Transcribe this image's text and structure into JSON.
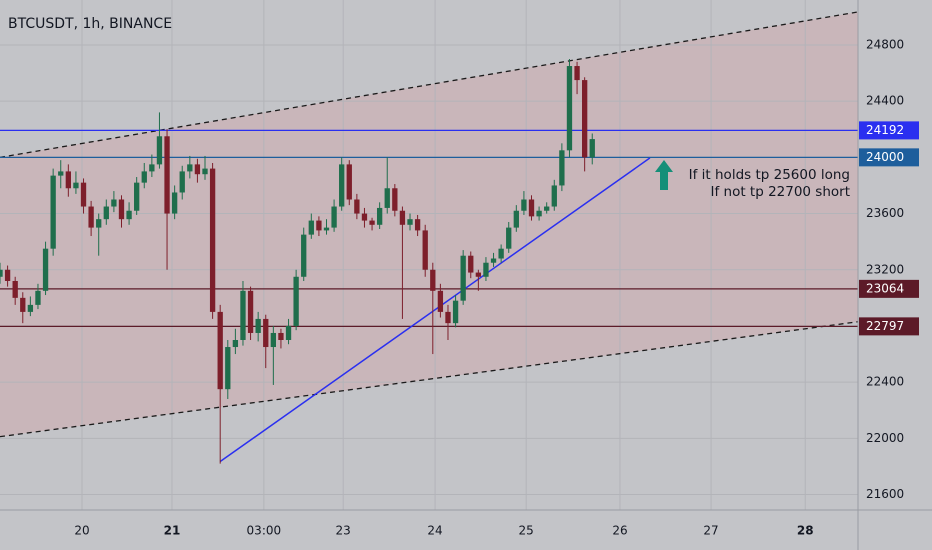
{
  "chart_data": {
    "type": "candlestick",
    "title": "BTCUSDT, 1h, BINANCE",
    "x": [
      0,
      2,
      4,
      6,
      8,
      10,
      12,
      14,
      16,
      18,
      20,
      22,
      24,
      26,
      28,
      30,
      32,
      34,
      36,
      38,
      40,
      42,
      44,
      46,
      48,
      50,
      52,
      54,
      56,
      58,
      60,
      62,
      64,
      66,
      68,
      70,
      72,
      74,
      76,
      78,
      80,
      82,
      84,
      86,
      88,
      90,
      92,
      94,
      96,
      98,
      100,
      102,
      104,
      106,
      108,
      110,
      112,
      114,
      116,
      118,
      120,
      122,
      124,
      126,
      128,
      130,
      132,
      134,
      136,
      138,
      140,
      142,
      144,
      146,
      148,
      150,
      152,
      154,
      156
    ],
    "open": [
      23150,
      23200,
      23120,
      23000,
      22900,
      22950,
      23050,
      23350,
      23870,
      23900,
      23780,
      23820,
      23650,
      23500,
      23560,
      23650,
      23700,
      23560,
      23620,
      23820,
      23900,
      23950,
      24150,
      23600,
      23750,
      23900,
      23950,
      23880,
      23920,
      22900,
      22350,
      22650,
      22700,
      23050,
      22750,
      22850,
      22650,
      22750,
      22700,
      22800,
      23150,
      23450,
      23550,
      23480,
      23500,
      23650,
      23950,
      23700,
      23600,
      23550,
      23520,
      23640,
      23780,
      23620,
      23520,
      23560,
      23480,
      23200,
      23050,
      22900,
      22820,
      22980,
      23300,
      23180,
      23150,
      23250,
      23280,
      23350,
      23500,
      23620,
      23700,
      23580,
      23620,
      23650,
      23800,
      24050,
      24650,
      24550,
      24000
    ],
    "high": [
      23250,
      23230,
      23150,
      23040,
      23010,
      23100,
      23400,
      23920,
      23980,
      23950,
      23900,
      23850,
      23690,
      23600,
      23700,
      23760,
      23730,
      23680,
      23860,
      23960,
      24020,
      24320,
      24200,
      23800,
      23940,
      24010,
      23990,
      24010,
      23960,
      22950,
      22700,
      22780,
      23120,
      23080,
      22900,
      22880,
      22800,
      22780,
      22850,
      23200,
      23500,
      23600,
      23580,
      23560,
      23700,
      24000,
      23980,
      23740,
      23640,
      23570,
      23680,
      24000,
      23810,
      23650,
      23600,
      23590,
      23520,
      23250,
      23100,
      22950,
      23020,
      23340,
      23330,
      23200,
      23290,
      23320,
      23380,
      23540,
      23660,
      23760,
      23730,
      23650,
      23680,
      23840,
      24100,
      24700,
      24680,
      24570,
      24170
    ],
    "low": [
      23100,
      23080,
      22950,
      22820,
      22870,
      22920,
      23020,
      23300,
      23780,
      23720,
      23740,
      23600,
      23440,
      23300,
      23520,
      23610,
      23500,
      23520,
      23590,
      23780,
      23860,
      23920,
      23200,
      23560,
      23700,
      23850,
      23820,
      23840,
      22850,
      21820,
      22280,
      22600,
      22660,
      22700,
      22690,
      22500,
      22380,
      22640,
      22670,
      22770,
      23120,
      23420,
      23440,
      23450,
      23470,
      23620,
      23660,
      23560,
      23500,
      23480,
      23490,
      23600,
      23580,
      22850,
      23480,
      23440,
      23150,
      22600,
      22860,
      22700,
      22790,
      22950,
      23140,
      23050,
      23120,
      23220,
      23250,
      23320,
      23470,
      23590,
      23550,
      23550,
      23600,
      23620,
      23760,
      24000,
      24450,
      23900,
      23950
    ],
    "close": [
      23200,
      23120,
      23000,
      22900,
      22950,
      23050,
      23350,
      23870,
      23900,
      23780,
      23820,
      23650,
      23500,
      23560,
      23650,
      23700,
      23560,
      23620,
      23820,
      23900,
      23950,
      24150,
      23600,
      23750,
      23900,
      23950,
      23880,
      23920,
      22900,
      22350,
      22650,
      22700,
      23050,
      22750,
      22850,
      22650,
      22750,
      22700,
      22800,
      23150,
      23450,
      23550,
      23480,
      23500,
      23650,
      23950,
      23700,
      23600,
      23550,
      23520,
      23640,
      23780,
      23620,
      23520,
      23560,
      23480,
      23200,
      23050,
      22900,
      22820,
      22980,
      23300,
      23180,
      23150,
      23250,
      23280,
      23350,
      23500,
      23620,
      23700,
      23580,
      23620,
      23650,
      23800,
      24050,
      24650,
      24550,
      24000,
      24130
    ],
    "up_color": "#1f6e4c",
    "down_color": "#7d1f2b",
    "xlim": [
      0,
      226
    ],
    "ylim": [
      21490,
      25120
    ],
    "xticks": [
      {
        "value": 21.6,
        "label": "20"
      },
      {
        "value": 45.3,
        "label": "21",
        "bold": true
      },
      {
        "value": 69.5,
        "label": "03:00"
      },
      {
        "value": 90.4,
        "label": "23"
      },
      {
        "value": 114.6,
        "label": "24"
      },
      {
        "value": 138.6,
        "label": "25"
      },
      {
        "value": 163.3,
        "label": "26"
      },
      {
        "value": 187.3,
        "label": "27"
      },
      {
        "value": 212.1,
        "label": "28",
        "bold": true
      }
    ],
    "yticks": [
      21600,
      22000,
      22400,
      22800,
      23200,
      23600,
      24000,
      24400,
      24800
    ],
    "grid": true,
    "channel": {
      "color": "#c9b6ba",
      "upper": [
        [
          0,
          24000
        ],
        [
          226,
          25035
        ]
      ],
      "lower": [
        [
          0,
          22012
        ],
        [
          226,
          22830
        ]
      ]
    },
    "trend_line": {
      "color": "#2a2ff0",
      "points": [
        [
          58,
          21835
        ],
        [
          171.2,
          23996
        ]
      ]
    },
    "levels": [
      {
        "value": 24192,
        "color": "#2a2ff0"
      },
      {
        "value": 24000,
        "color": "#1d5e9c"
      },
      {
        "value": 23064,
        "color": "#5c1a28"
      },
      {
        "value": 22797,
        "color": "#5c1a28"
      }
    ],
    "annotations": [
      "If it holds tp 25600 long",
      "If not tp 22700 short"
    ]
  }
}
